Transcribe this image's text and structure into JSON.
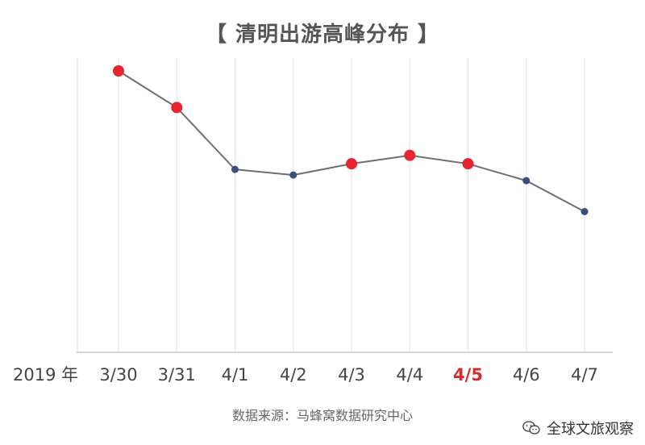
{
  "chart_data": {
    "type": "line",
    "title": "【 清明出游高峰分布 】",
    "year_label": "2019 年",
    "categories": [
      "3/30",
      "3/31",
      "4/1",
      "4/2",
      "4/3",
      "4/4",
      "4/5",
      "4/6",
      "4/7"
    ],
    "values": [
      100,
      87,
      65,
      63,
      67,
      70,
      67,
      61,
      50
    ],
    "highlight_points": [
      0,
      1,
      4,
      5,
      6
    ],
    "highlight_categories": [
      6
    ],
    "ylim": [
      0,
      100
    ],
    "grid": "vertical",
    "colors": {
      "line": "#6b6f78",
      "point": "#3a4f7a",
      "highlight_point": "#e8242f",
      "highlight_label": "#d92a2a",
      "label": "#444444",
      "grid": "#e3e3e8",
      "axis": "#c8c8d0"
    }
  },
  "footer": {
    "source": "数据来源：马蜂窝数据研究中心",
    "watermark": "全球文旅观察",
    "watermark_icon": "wechat-icon"
  }
}
